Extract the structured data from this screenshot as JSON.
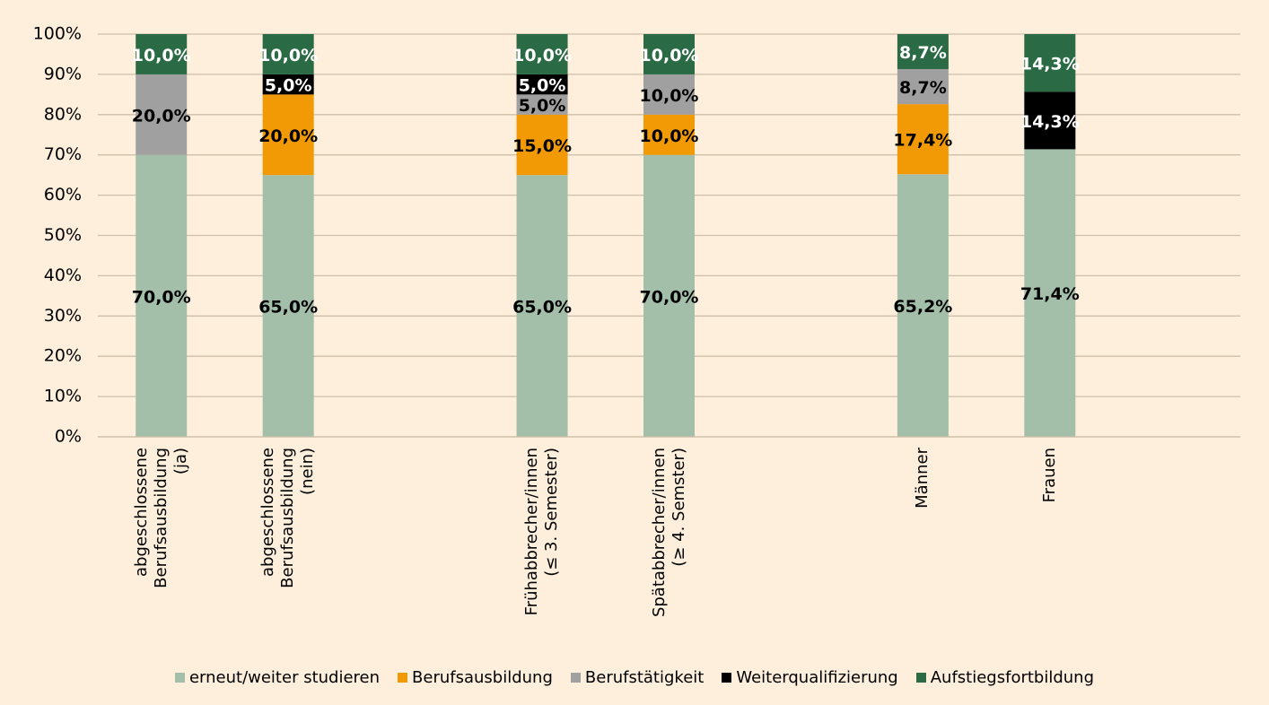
{
  "chart_data": {
    "type": "stacked_bar",
    "categories": [
      "abgeschlossene\nBerufsausbildung\n(ja)",
      "abgeschlossene\nBerufsausbildung\n(nein)",
      null,
      "Frühabbrecher/innen\n(≤ 3. Semester)",
      "Spätabbrecher/innen\n(≥ 4. Semster)",
      null,
      "Männer",
      "Frauen",
      null
    ],
    "series": [
      {
        "name": "erneut/weiter studieren",
        "color": "#a3bfaa",
        "values": [
          70,
          65,
          null,
          65,
          70,
          null,
          65.2,
          71.4,
          null
        ],
        "value_labels": [
          "70,0%",
          "65,0%",
          null,
          "65,0%",
          "70,0%",
          null,
          "65,2%",
          "71,4%",
          null
        ]
      },
      {
        "name": "Berufsausbildung",
        "color": "#f29a05",
        "values": [
          null,
          20,
          null,
          15,
          10,
          null,
          17.4,
          null,
          null
        ],
        "value_labels": [
          null,
          "20,0%",
          null,
          "15,0%",
          "10,0%",
          null,
          "17,4%",
          null,
          null
        ]
      },
      {
        "name": "Berufstätigkeit",
        "color": "#a0a0a0",
        "values": [
          20,
          null,
          null,
          5,
          10,
          null,
          8.7,
          null,
          null
        ],
        "value_labels": [
          "20,0%",
          null,
          null,
          "5,0%",
          "10,0%",
          null,
          "8,7%",
          null,
          null
        ]
      },
      {
        "name": "Weiterqualifizierung",
        "color": "#000000",
        "values": [
          null,
          5,
          null,
          5,
          null,
          null,
          null,
          14.3,
          null
        ],
        "value_labels": [
          null,
          "5,0%",
          null,
          "5,0%",
          null,
          null,
          null,
          "14,3%",
          null
        ]
      },
      {
        "name": "Aufstiegsfortbildung",
        "color": "#2a6b45",
        "values": [
          10,
          10,
          null,
          10,
          10,
          null,
          8.7,
          14.3,
          null
        ],
        "value_labels": [
          "10,0%",
          "10,0%",
          null,
          "10,0%",
          "10,0%",
          null,
          "8,7%",
          "14,3%",
          null
        ]
      }
    ],
    "ylim": [
      0,
      100
    ],
    "yticks": [
      {
        "value": 0,
        "label": "0%"
      },
      {
        "value": 10,
        "label": "10%"
      },
      {
        "value": 20,
        "label": "20%"
      },
      {
        "value": 30,
        "label": "30%"
      },
      {
        "value": 40,
        "label": "40%"
      },
      {
        "value": 50,
        "label": "50%"
      },
      {
        "value": 60,
        "label": "60%"
      },
      {
        "value": 70,
        "label": "70%"
      },
      {
        "value": 80,
        "label": "80%"
      },
      {
        "value": 90,
        "label": "90%"
      },
      {
        "value": 100,
        "label": "100%"
      }
    ],
    "grid": true,
    "legend": "bottom"
  }
}
